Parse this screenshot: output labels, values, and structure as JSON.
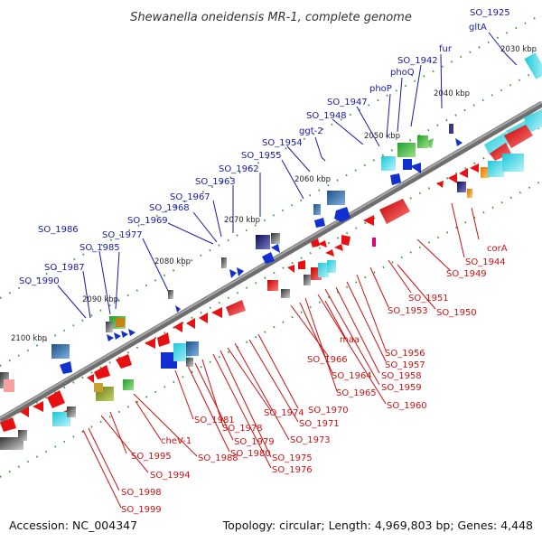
{
  "title": "Shewanella oneidensis MR-1, complete genome",
  "footer": {
    "accession": "Accession: NC_004347",
    "summary": "Topology: circular; Length: 4,969,803 bp; Genes: 4,448"
  },
  "scale_labels": [
    "2030 kbp",
    "2040 kbp",
    "2050 kbp",
    "2060 kbp",
    "2070 kbp",
    "2080 kbp",
    "2090 kbp",
    "2100 kbp"
  ],
  "genes_top": [
    "SO_1925",
    "gltA",
    "fur",
    "SO_1942",
    "phoQ",
    "phoP",
    "SO_1947",
    "SO_1948",
    "ggt-2",
    "SO_1954",
    "SO_1955",
    "SO_1962",
    "SO_1963",
    "SO_1967",
    "SO_1968",
    "SO_1969",
    "SO_1977",
    "SO_1986",
    "SO_1985",
    "SO_1987",
    "SO_1990"
  ],
  "genes_bottom": [
    "corA",
    "SO_1944",
    "SO_1949",
    "SO_1951",
    "SO_1953",
    "SO_1950",
    "maa",
    "SO_1956",
    "SO_1957",
    "SO_1958",
    "SO_1959",
    "SO_1960",
    "SO_1966",
    "SO_1964",
    "SO_1965",
    "SO_1970",
    "SO_1971",
    "SO_1973",
    "SO_1974",
    "SO_1975",
    "SO_1976",
    "SO_1978",
    "SO_1979",
    "SO_1980",
    "SO_1981",
    "SO_1988",
    "cheV-1",
    "SO_1995",
    "SO_1994",
    "SO_1998",
    "SO_1999"
  ],
  "colors": {
    "forward_label": "#1a1aa8",
    "reverse_label": "#cc1111",
    "forward_gene": "#1030d0",
    "reverse_gene": "#e81010",
    "backbone": "#7a7a7a",
    "tick_green": "#1a8a1a"
  }
}
